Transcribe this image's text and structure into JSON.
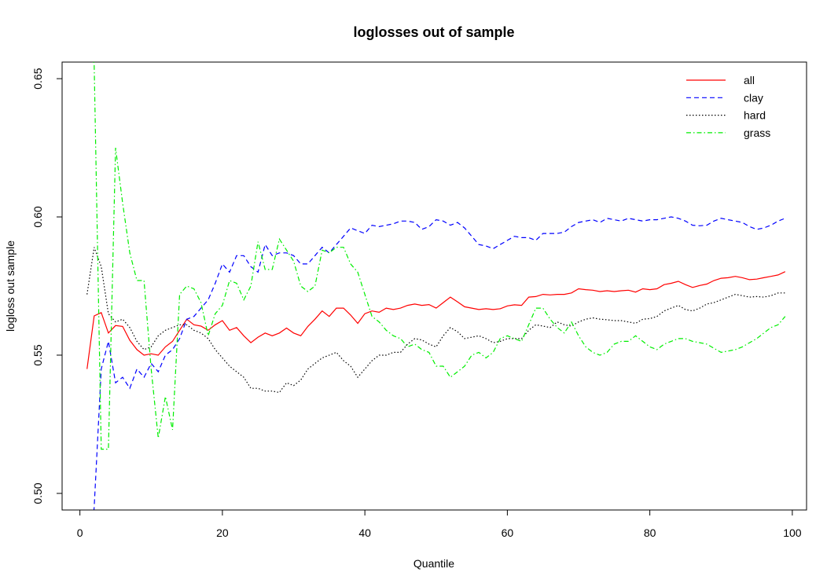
{
  "chart_data": {
    "type": "line",
    "title": "loglosses out of sample",
    "xlabel": "Quantile",
    "ylabel": "logloss out sample",
    "xlim": [
      -2.5,
      102
    ],
    "ylim": [
      0.494,
      0.656
    ],
    "xticks": [
      0,
      20,
      40,
      60,
      80,
      100
    ],
    "yticks": [
      0.5,
      0.55,
      0.6,
      0.65
    ],
    "ytick_labels": [
      "0.50",
      "0.55",
      "0.60",
      "0.65"
    ],
    "grid": false,
    "legend": "top-right",
    "x": [
      1,
      2,
      3,
      4,
      5,
      6,
      7,
      8,
      9,
      10,
      11,
      12,
      13,
      14,
      15,
      16,
      17,
      18,
      19,
      20,
      21,
      22,
      23,
      24,
      25,
      26,
      27,
      28,
      29,
      30,
      31,
      32,
      33,
      34,
      35,
      36,
      37,
      38,
      39,
      40,
      41,
      42,
      43,
      44,
      45,
      46,
      47,
      48,
      49,
      50,
      51,
      52,
      53,
      54,
      55,
      56,
      57,
      58,
      59,
      60,
      61,
      62,
      63,
      64,
      65,
      66,
      67,
      68,
      69,
      70,
      71,
      72,
      73,
      74,
      75,
      76,
      77,
      78,
      79,
      80,
      81,
      82,
      83,
      84,
      85,
      86,
      87,
      88,
      89,
      90,
      91,
      92,
      93,
      94,
      95,
      96,
      97,
      98,
      99
    ],
    "series": [
      {
        "name": "all",
        "color": "#ff0000",
        "dash": "solid",
        "values": [
          0.545,
          0.5642,
          0.5654,
          0.558,
          0.5607,
          0.5604,
          0.5554,
          0.552,
          0.55,
          0.5505,
          0.55,
          0.553,
          0.555,
          0.559,
          0.563,
          0.561,
          0.5605,
          0.559,
          0.561,
          0.5625,
          0.559,
          0.56,
          0.557,
          0.5545,
          0.5565,
          0.558,
          0.557,
          0.558,
          0.5598,
          0.558,
          0.557,
          0.5604,
          0.563,
          0.566,
          0.564,
          0.567,
          0.567,
          0.5645,
          0.5615,
          0.565,
          0.566,
          0.5655,
          0.567,
          0.5665,
          0.567,
          0.568,
          0.5685,
          0.568,
          0.5683,
          0.567,
          0.569,
          0.571,
          0.5693,
          0.5675,
          0.567,
          0.5665,
          0.5668,
          0.5665,
          0.5668,
          0.5678,
          0.5682,
          0.568,
          0.571,
          0.5712,
          0.572,
          0.5718,
          0.572,
          0.572,
          0.5725,
          0.574,
          0.5737,
          0.5735,
          0.573,
          0.5733,
          0.573,
          0.5733,
          0.5735,
          0.5728,
          0.574,
          0.5737,
          0.574,
          0.5755,
          0.576,
          0.5767,
          0.5755,
          0.5745,
          0.5752,
          0.5757,
          0.577,
          0.5778,
          0.578,
          0.5785,
          0.578,
          0.5773,
          0.5775,
          0.578,
          0.5785,
          0.579,
          0.5802
        ]
      },
      {
        "name": "clay",
        "color": "#0000ff",
        "dash": "dashed",
        "values": [
          0.465,
          0.495,
          0.545,
          0.555,
          0.54,
          0.542,
          0.538,
          0.545,
          0.542,
          0.547,
          0.544,
          0.55,
          0.552,
          0.556,
          0.563,
          0.564,
          0.567,
          0.57,
          0.576,
          0.583,
          0.58,
          0.586,
          0.586,
          0.582,
          0.58,
          0.59,
          0.586,
          0.587,
          0.587,
          0.586,
          0.583,
          0.583,
          0.586,
          0.589,
          0.587,
          0.59,
          0.593,
          0.596,
          0.595,
          0.594,
          0.597,
          0.5965,
          0.597,
          0.5975,
          0.5985,
          0.5985,
          0.598,
          0.5955,
          0.5965,
          0.599,
          0.5985,
          0.597,
          0.598,
          0.596,
          0.593,
          0.59,
          0.5895,
          0.5885,
          0.59,
          0.5915,
          0.593,
          0.5925,
          0.5925,
          0.5915,
          0.594,
          0.594,
          0.594,
          0.5945,
          0.5965,
          0.598,
          0.5985,
          0.599,
          0.598,
          0.5995,
          0.599,
          0.5985,
          0.5995,
          0.599,
          0.5985,
          0.599,
          0.599,
          0.5995,
          0.6,
          0.5995,
          0.5985,
          0.597,
          0.5968,
          0.597,
          0.5985,
          0.5995,
          0.599,
          0.5985,
          0.598,
          0.5965,
          0.5955,
          0.596,
          0.597,
          0.5985,
          0.5995
        ]
      },
      {
        "name": "hard",
        "color": "#000000",
        "dash": "dotted",
        "values": [
          0.572,
          0.589,
          0.582,
          0.565,
          0.562,
          0.563,
          0.56,
          0.555,
          0.552,
          0.553,
          0.557,
          0.559,
          0.56,
          0.561,
          0.561,
          0.559,
          0.558,
          0.556,
          0.552,
          0.549,
          0.546,
          0.544,
          0.542,
          0.538,
          0.538,
          0.537,
          0.537,
          0.5365,
          0.54,
          0.539,
          0.541,
          0.545,
          0.547,
          0.549,
          0.55,
          0.551,
          0.548,
          0.546,
          0.542,
          0.545,
          0.548,
          0.55,
          0.55,
          0.551,
          0.551,
          0.554,
          0.556,
          0.5555,
          0.554,
          0.553,
          0.557,
          0.56,
          0.5585,
          0.556,
          0.5565,
          0.557,
          0.556,
          0.5545,
          0.555,
          0.556,
          0.556,
          0.556,
          0.559,
          0.561,
          0.5605,
          0.56,
          0.562,
          0.561,
          0.5605,
          0.562,
          0.563,
          0.5635,
          0.563,
          0.5628,
          0.5625,
          0.5625,
          0.562,
          0.5615,
          0.563,
          0.5632,
          0.564,
          0.566,
          0.567,
          0.568,
          0.5665,
          0.566,
          0.567,
          0.5685,
          0.569,
          0.57,
          0.571,
          0.572,
          0.5715,
          0.571,
          0.5712,
          0.571,
          0.5715,
          0.5725,
          0.5725
        ]
      },
      {
        "name": "grass",
        "color": "#00ee00",
        "dash": "dashdot",
        "values": [
          0.67,
          0.655,
          0.516,
          0.516,
          0.625,
          0.605,
          0.587,
          0.577,
          0.577,
          0.545,
          0.52,
          0.535,
          0.523,
          0.572,
          0.575,
          0.574,
          0.569,
          0.557,
          0.565,
          0.568,
          0.577,
          0.576,
          0.57,
          0.575,
          0.591,
          0.581,
          0.581,
          0.592,
          0.588,
          0.584,
          0.575,
          0.573,
          0.575,
          0.588,
          0.587,
          0.589,
          0.589,
          0.583,
          0.58,
          0.572,
          0.564,
          0.562,
          0.559,
          0.557,
          0.556,
          0.553,
          0.554,
          0.552,
          0.551,
          0.546,
          0.546,
          0.542,
          0.544,
          0.546,
          0.55,
          0.551,
          0.549,
          0.551,
          0.556,
          0.557,
          0.556,
          0.555,
          0.561,
          0.567,
          0.567,
          0.563,
          0.56,
          0.558,
          0.562,
          0.557,
          0.553,
          0.551,
          0.55,
          0.551,
          0.554,
          0.555,
          0.555,
          0.557,
          0.555,
          0.553,
          0.552,
          0.554,
          0.555,
          0.556,
          0.556,
          0.555,
          0.5545,
          0.554,
          0.5525,
          0.551,
          0.5515,
          0.552,
          0.553,
          0.5545,
          0.556,
          0.558,
          0.56,
          0.561,
          0.564
        ]
      }
    ]
  }
}
